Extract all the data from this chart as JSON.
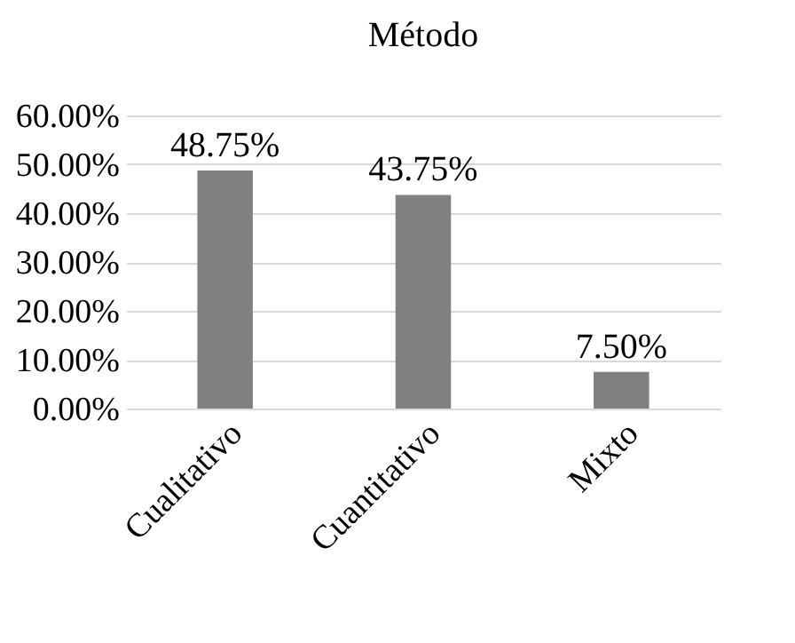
{
  "chart_data": {
    "type": "bar",
    "title": "Método",
    "categories": [
      "Cualitativo",
      "Cuantitativo",
      "Mixto"
    ],
    "values": [
      48.75,
      43.75,
      7.5
    ],
    "color": "#808080",
    "value_labels": [
      "48.75%",
      "43.75%",
      "7.50%"
    ],
    "ylim": [
      0,
      60
    ],
    "yticks": [
      {
        "value": 0,
        "label": "0.00%"
      },
      {
        "value": 10,
        "label": "10.00%"
      },
      {
        "value": 20,
        "label": "20.00%"
      },
      {
        "value": 30,
        "label": "30.00%"
      },
      {
        "value": 40,
        "label": "40.00%"
      },
      {
        "value": 50,
        "label": "50.00%"
      },
      {
        "value": 60,
        "label": "60.00%"
      }
    ],
    "grid": "y"
  }
}
